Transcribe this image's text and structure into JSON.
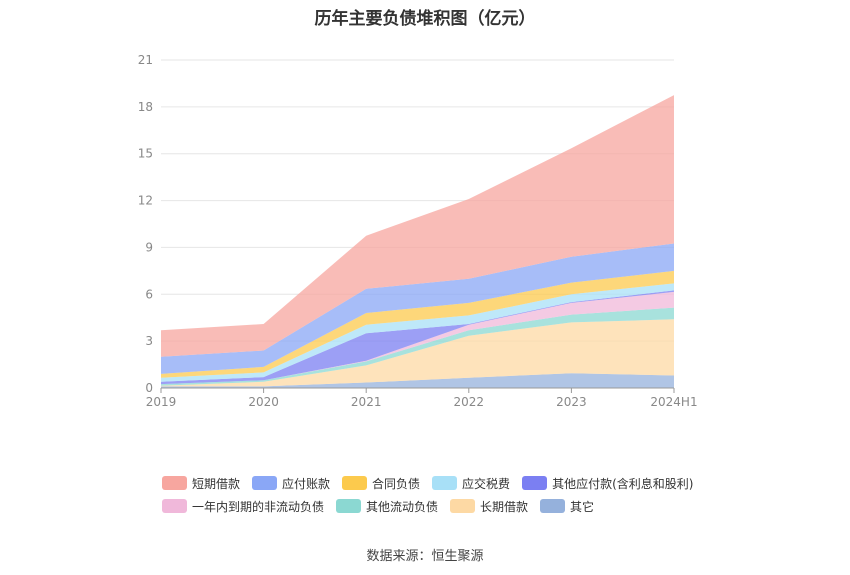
{
  "title": "历年主要负债堆积图（亿元）",
  "source": "数据来源：恒生聚源",
  "chart_data": {
    "type": "area",
    "stacked": true,
    "title": "历年主要负债堆积图（亿元）",
    "xlabel": "",
    "ylabel": "",
    "ylim": [
      0,
      21
    ],
    "yticks": [
      0,
      3,
      6,
      9,
      12,
      15,
      18,
      21
    ],
    "categories": [
      "2019",
      "2020",
      "2021",
      "2022",
      "2023",
      "2024H1"
    ],
    "grid": true,
    "legend_position": "bottom",
    "series": [
      {
        "name": "其它",
        "color": "#95b1dc",
        "values": [
          0.1,
          0.1,
          0.35,
          0.65,
          0.95,
          0.8
        ]
      },
      {
        "name": "长期借款",
        "color": "#fdd9a4",
        "values": [
          0.05,
          0.3,
          1.1,
          2.7,
          3.25,
          3.6
        ]
      },
      {
        "name": "其他流动负债",
        "color": "#8bd8d2",
        "values": [
          0.1,
          0.1,
          0.25,
          0.35,
          0.5,
          0.75
        ]
      },
      {
        "name": "一年内到期的非流动负债",
        "color": "#f0b8da",
        "values": [
          0.0,
          0.0,
          0.05,
          0.35,
          0.75,
          1.0
        ]
      },
      {
        "name": "其他应付款(含利息和股利)",
        "color": "#7b7ff2",
        "values": [
          0.15,
          0.2,
          1.75,
          0.05,
          0.05,
          0.1
        ]
      },
      {
        "name": "应交税费",
        "color": "#a8e0f7",
        "values": [
          0.25,
          0.3,
          0.55,
          0.55,
          0.5,
          0.45
        ]
      },
      {
        "name": "合同负债",
        "color": "#fcca4d",
        "values": [
          0.25,
          0.35,
          0.75,
          0.8,
          0.75,
          0.8
        ]
      },
      {
        "name": "应付账款",
        "color": "#8aa7f6",
        "values": [
          1.1,
          1.05,
          1.55,
          1.55,
          1.65,
          1.75
        ]
      },
      {
        "name": "短期借款",
        "color": "#f7a69f",
        "values": [
          1.7,
          1.7,
          3.4,
          5.1,
          6.95,
          9.5
        ]
      }
    ]
  },
  "legend": {
    "rows": [
      [
        {
          "label": "短期借款",
          "color": "#f7a69f"
        },
        {
          "label": "应付账款",
          "color": "#8aa7f6"
        },
        {
          "label": "合同负债",
          "color": "#fcca4d"
        },
        {
          "label": "应交税费",
          "color": "#a8e0f7"
        },
        {
          "label": "其他应付款(含利息和股利)",
          "color": "#7b7ff2"
        }
      ],
      [
        {
          "label": "一年内到期的非流动负债",
          "color": "#f0b8da"
        },
        {
          "label": "其他流动负债",
          "color": "#8bd8d2"
        },
        {
          "label": "长期借款",
          "color": "#fdd9a4"
        },
        {
          "label": "其它",
          "color": "#95b1dc"
        }
      ]
    ]
  }
}
